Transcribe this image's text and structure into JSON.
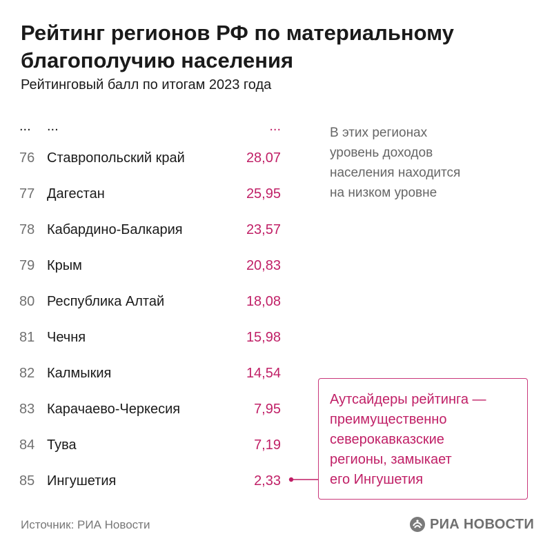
{
  "header": {
    "title": "Рейтинг регионов РФ по материальному благополучию населения",
    "subtitle": "Рейтинговый балл по итогам 2023 года"
  },
  "table": {
    "ellipsis": {
      "rank": "...",
      "region": "...",
      "value": "..."
    }
  },
  "chart_data": {
    "type": "table",
    "title": "Рейтинг регионов РФ по материальному благополучию населения",
    "subtitle": "Рейтинговый балл по итогам 2023 года",
    "rows": [
      {
        "rank": "76",
        "region": "Ставропольский край",
        "value": "28,07"
      },
      {
        "rank": "77",
        "region": "Дагестан",
        "value": "25,95"
      },
      {
        "rank": "78",
        "region": "Кабардино-Балкария",
        "value": "23,57"
      },
      {
        "rank": "79",
        "region": "Крым",
        "value": "20,83"
      },
      {
        "rank": "80",
        "region": "Республика Алтай",
        "value": "18,08"
      },
      {
        "rank": "81",
        "region": "Чечня",
        "value": "15,98"
      },
      {
        "rank": "82",
        "region": "Калмыкия",
        "value": "14,54"
      },
      {
        "rank": "83",
        "region": "Карачаево-Черкесия",
        "value": "7,95"
      },
      {
        "rank": "84",
        "region": "Тува",
        "value": "7,19"
      },
      {
        "rank": "85",
        "region": "Ингушетия",
        "value": "2,33"
      }
    ]
  },
  "note": {
    "lines": [
      "В этих регионах",
      "уровень доходов",
      "населения находится",
      "на низком уровне"
    ]
  },
  "callout": {
    "lines": [
      "Аутсайдеры рейтинга —",
      "преимущественно",
      "северокавказские",
      "регионы, замыкает",
      "его Ингушетия"
    ]
  },
  "footer": {
    "source": "Источник: РИА Новости",
    "logo_text": "РИА НОВОСТИ",
    "logo_icon": "ria-novosti-logo-icon"
  },
  "colors": {
    "accent": "#c01f66",
    "text": "#1a1a1a",
    "muted": "#707070"
  }
}
